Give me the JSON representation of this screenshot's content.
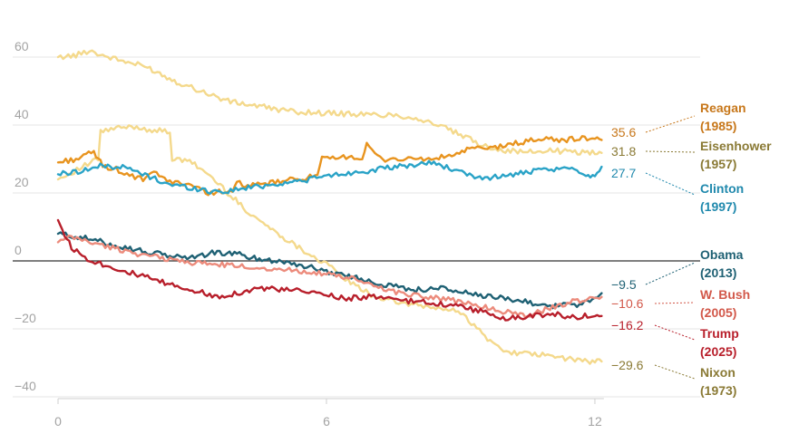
{
  "chart_data": {
    "type": "line",
    "title": "",
    "xlabel": "",
    "ylabel": "",
    "xlim": [
      0,
      12.2
    ],
    "ylim": [
      -40,
      63
    ],
    "x_ticks": [
      {
        "value": 0,
        "label": "0"
      },
      {
        "value": 6,
        "label": "6"
      },
      {
        "value": 12,
        "label": "12"
      }
    ],
    "y_ticks": [
      {
        "value": 60,
        "label": "60"
      },
      {
        "value": 40,
        "label": "40"
      },
      {
        "value": 20,
        "label": "20"
      },
      {
        "value": 0,
        "label": "0"
      },
      {
        "value": -20,
        "label": "−20"
      },
      {
        "value": -40,
        "label": "−40"
      }
    ],
    "series": [
      {
        "id": "eisenhower",
        "name": "Eisenhower",
        "year": "(1957)",
        "end_label": "31.8",
        "color": "#f4d98c",
        "label_color": "#8a7a35",
        "x": [
          0,
          0.4,
          0.7,
          1.0,
          1.4,
          2.0,
          2.6,
          3.2,
          3.8,
          4.5,
          5.2,
          6.0,
          7.0,
          7.5,
          8.0,
          8.5,
          9.0,
          9.5,
          10.0,
          10.5,
          11.0,
          11.5,
          12.0,
          12.15
        ],
        "y": [
          60,
          60.5,
          62,
          60.5,
          59,
          57,
          53,
          50,
          47,
          45.5,
          44,
          43.5,
          43,
          43,
          42,
          40,
          37,
          34,
          32.5,
          32,
          32.5,
          32,
          32,
          31.8
        ]
      },
      {
        "id": "nixon",
        "name": "Nixon",
        "year": "(1973)",
        "end_label": "−29.6",
        "color": "#f4d98c",
        "label_color": "#8a7a35",
        "x": [
          0,
          0.3,
          0.6,
          0.9,
          0.95,
          1.3,
          1.7,
          2.1,
          2.5,
          2.55,
          3.0,
          3.4,
          3.8,
          4.2,
          4.8,
          5.5,
          6.0,
          6.3,
          6.6,
          7.0,
          7.5,
          8.0,
          8.5,
          9.0,
          9.3,
          9.6,
          9.9,
          10.2,
          10.6,
          11.0,
          11.5,
          12.0,
          12.15
        ],
        "y": [
          24,
          26,
          28,
          30,
          38,
          39,
          39.5,
          38.5,
          38,
          30,
          29,
          25,
          20,
          15,
          9,
          3,
          -1,
          -4,
          -7,
          -10,
          -12,
          -13,
          -14,
          -15,
          -19,
          -23,
          -26,
          -27,
          -27.5,
          -28,
          -29,
          -29.8,
          -29.6
        ]
      },
      {
        "id": "reagan",
        "name": "Reagan",
        "year": "(1985)",
        "end_label": "35.6",
        "color": "#e8941f",
        "label_color": "#c7771a",
        "x": [
          0,
          0.4,
          0.8,
          1.0,
          1.3,
          1.6,
          1.9,
          2.2,
          2.5,
          2.8,
          3.1,
          3.3,
          3.6,
          3.9,
          4.0,
          4.3,
          4.8,
          5.3,
          5.8,
          5.9,
          6.2,
          6.5,
          6.8,
          6.9,
          7.2,
          7.6,
          8.0,
          8.4,
          8.8,
          9.2,
          9.6,
          10.0,
          10.4,
          10.8,
          11.2,
          11.6,
          12.0,
          12.15
        ],
        "y": [
          29,
          30,
          32,
          28,
          27,
          25,
          24,
          26,
          23,
          23,
          22,
          20,
          20.5,
          20,
          23,
          22,
          23,
          24,
          25,
          30,
          30,
          31,
          30,
          34,
          30,
          30,
          30,
          30,
          31,
          33,
          33,
          34,
          35,
          36,
          35.5,
          36,
          36.2,
          35.6
        ]
      },
      {
        "id": "clinton",
        "name": "Clinton",
        "year": "(1997)",
        "end_label": "27.7",
        "color": "#2aa3c7",
        "label_color": "#2089ad",
        "x": [
          0,
          0.5,
          1.0,
          1.5,
          2.0,
          2.5,
          3.0,
          3.4,
          3.8,
          4.2,
          4.8,
          5.4,
          6.0,
          6.6,
          7.2,
          7.8,
          8.4,
          8.8,
          9.2,
          9.6,
          10.0,
          10.4,
          10.8,
          11.2,
          11.6,
          11.8,
          12.0,
          12.15
        ],
        "y": [
          25.5,
          26.5,
          28,
          27.5,
          25,
          22.5,
          21.5,
          20.5,
          20.5,
          21.5,
          22.5,
          23.5,
          25,
          26,
          27,
          28,
          29,
          27,
          25,
          24.5,
          25,
          26,
          26.5,
          27,
          27,
          25,
          25.5,
          27.7
        ]
      },
      {
        "id": "obama",
        "name": "Obama",
        "year": "(2013)",
        "end_label": "−9.5",
        "color": "#1f6174",
        "label_color": "#1f6174",
        "x": [
          0,
          0.5,
          1.0,
          1.5,
          2.0,
          2.5,
          3.0,
          3.5,
          4.0,
          4.5,
          5.0,
          5.5,
          6.0,
          6.5,
          7.0,
          7.5,
          8.0,
          8.5,
          9.0,
          9.5,
          10.0,
          10.5,
          11.0,
          11.3,
          11.6,
          12.0,
          12.15
        ],
        "y": [
          8,
          7,
          5.5,
          4,
          2.5,
          1.5,
          1,
          2.5,
          2,
          0.5,
          0,
          -1.5,
          -3,
          -4.5,
          -6,
          -7.5,
          -8.5,
          -8,
          -9,
          -10.5,
          -11,
          -12,
          -13.5,
          -12.5,
          -13,
          -11.5,
          -9.5
        ]
      },
      {
        "id": "bush",
        "name": "W. Bush",
        "year": "(2005)",
        "end_label": "−10.6",
        "color": "#ec8b7c",
        "label_color": "#d2584a",
        "x": [
          0,
          0.3,
          0.6,
          1.0,
          1.5,
          2.0,
          2.5,
          3.0,
          3.5,
          4.0,
          4.5,
          5.0,
          5.5,
          6.0,
          6.5,
          7.0,
          7.5,
          8.0,
          8.5,
          9.0,
          9.5,
          10.0,
          10.5,
          11.0,
          11.5,
          12.0,
          12.15
        ],
        "y": [
          5.5,
          7,
          6,
          4.5,
          3,
          1.5,
          0.5,
          -0.5,
          -1,
          -1.5,
          -2,
          -2.5,
          -3,
          -4,
          -5,
          -7,
          -9,
          -10,
          -11,
          -12,
          -13.5,
          -15,
          -16,
          -14,
          -12,
          -11,
          -10.6
        ]
      },
      {
        "id": "trump",
        "name": "Trump",
        "year": "(2025)",
        "end_label": "−16.2",
        "color": "#b81f2b",
        "label_color": "#b81f2b",
        "x": [
          0,
          0.1,
          0.3,
          0.6,
          1.0,
          1.5,
          2.0,
          2.5,
          3.0,
          3.5,
          4.0,
          4.5,
          5.0,
          5.5,
          6.0,
          6.5,
          7.0,
          7.5,
          8.0,
          8.5,
          9.0,
          9.5,
          10.0,
          10.5,
          11.0,
          11.5,
          12.0,
          12.15
        ],
        "y": [
          12,
          9,
          4,
          1,
          -1,
          -3,
          -5,
          -7,
          -8.5,
          -10.5,
          -9.5,
          -8,
          -8.5,
          -9,
          -10,
          -11,
          -10.5,
          -11.5,
          -12,
          -12.5,
          -13.5,
          -15,
          -17,
          -16.5,
          -15.5,
          -16.5,
          -16,
          -16.2
        ]
      }
    ]
  }
}
